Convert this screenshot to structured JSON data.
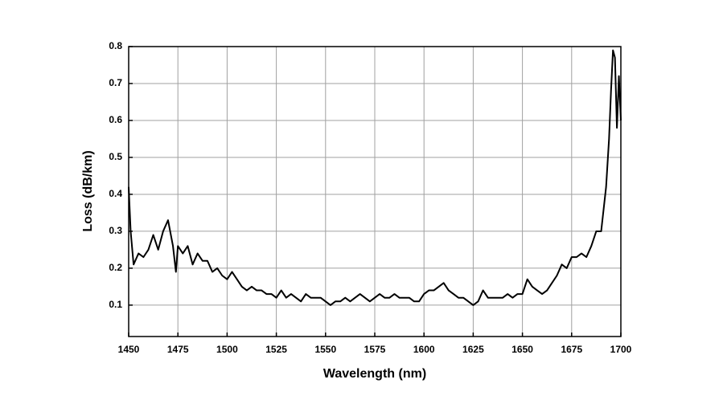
{
  "chart_data": {
    "type": "line",
    "xlabel": "Wavelength (nm)",
    "ylabel": "Loss (dB/km)",
    "xlim": [
      1450,
      1700
    ],
    "ylim": [
      0.015,
      0.8
    ],
    "xticks": [
      1450,
      1475,
      1500,
      1525,
      1550,
      1575,
      1600,
      1625,
      1650,
      1675,
      1700
    ],
    "yticks": [
      0.1,
      0.2,
      0.3,
      0.4,
      0.5,
      0.6,
      0.7,
      0.8
    ],
    "grid": true,
    "series": [
      {
        "color": "#000000",
        "x": [
          1450,
          1451,
          1452.5,
          1455,
          1457.5,
          1460,
          1462.5,
          1465,
          1467.5,
          1470,
          1472.5,
          1474,
          1475,
          1477.5,
          1480,
          1482.5,
          1485,
          1487.5,
          1490,
          1492.5,
          1495,
          1497.5,
          1500,
          1502.5,
          1505,
          1507.5,
          1510,
          1512.5,
          1515,
          1517.5,
          1520,
          1522.5,
          1525,
          1527.5,
          1530,
          1532.5,
          1535,
          1537.5,
          1540,
          1542.5,
          1545,
          1547.5,
          1550,
          1552.5,
          1555,
          1557.5,
          1560,
          1562.5,
          1565,
          1567.5,
          1570,
          1572.5,
          1575,
          1577.5,
          1580,
          1582.5,
          1585,
          1587.5,
          1590,
          1592.5,
          1595,
          1597.5,
          1600,
          1602.5,
          1605,
          1607.5,
          1610,
          1612.5,
          1615,
          1617.5,
          1620,
          1622.5,
          1625,
          1627.5,
          1630,
          1632.5,
          1635,
          1637.5,
          1640,
          1642.5,
          1645,
          1647.5,
          1650,
          1652.5,
          1655,
          1657.5,
          1660,
          1662.5,
          1665,
          1667.5,
          1670,
          1672.5,
          1675,
          1677.5,
          1680,
          1682.5,
          1685,
          1687.5,
          1690,
          1692.5,
          1694,
          1695,
          1696,
          1697,
          1698,
          1699,
          1700
        ],
        "values": [
          0.42,
          0.3,
          0.21,
          0.24,
          0.23,
          0.25,
          0.29,
          0.25,
          0.3,
          0.33,
          0.26,
          0.19,
          0.26,
          0.24,
          0.26,
          0.21,
          0.24,
          0.22,
          0.22,
          0.19,
          0.2,
          0.18,
          0.17,
          0.19,
          0.17,
          0.15,
          0.14,
          0.15,
          0.14,
          0.14,
          0.13,
          0.13,
          0.12,
          0.14,
          0.12,
          0.13,
          0.12,
          0.11,
          0.13,
          0.12,
          0.12,
          0.12,
          0.11,
          0.1,
          0.11,
          0.11,
          0.12,
          0.11,
          0.12,
          0.13,
          0.12,
          0.11,
          0.12,
          0.13,
          0.12,
          0.12,
          0.13,
          0.12,
          0.12,
          0.12,
          0.11,
          0.11,
          0.13,
          0.14,
          0.14,
          0.15,
          0.16,
          0.14,
          0.13,
          0.12,
          0.12,
          0.11,
          0.1,
          0.11,
          0.14,
          0.12,
          0.12,
          0.12,
          0.12,
          0.13,
          0.12,
          0.13,
          0.13,
          0.17,
          0.15,
          0.14,
          0.13,
          0.14,
          0.16,
          0.18,
          0.21,
          0.2,
          0.23,
          0.23,
          0.24,
          0.23,
          0.26,
          0.3,
          0.3,
          0.42,
          0.55,
          0.68,
          0.79,
          0.77,
          0.58,
          0.72,
          0.6
        ]
      }
    ]
  }
}
